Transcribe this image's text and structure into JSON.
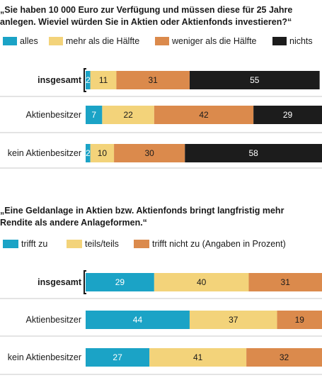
{
  "chart_data": [
    {
      "type": "bar",
      "stacked": true,
      "orientation": "horizontal",
      "title_lines": [
        "„Sie haben 10 000 Euro zur Verfügung und müssen diese für 25 Jahre",
        "anlegen. Wieviel würden Sie in Aktien oder Aktienfonds investieren?“"
      ],
      "categories": [
        "insgesamt",
        "Aktienbesitzer",
        "kein Aktienbesitzer"
      ],
      "highlight_category": "insgesamt",
      "xlim": [
        0,
        100
      ],
      "legend_placement": "top",
      "series": [
        {
          "name": "alles",
          "color": "#1ba3c6",
          "values": [
            2,
            7,
            2
          ]
        },
        {
          "name": "mehr als die Hälfte",
          "color": "#f3d37a",
          "values": [
            11,
            22,
            10
          ]
        },
        {
          "name": "weniger als die Hälfte",
          "color": "#db8a4c",
          "values": [
            31,
            42,
            30
          ]
        },
        {
          "name": "nichts",
          "color": "#1c1c1c",
          "values": [
            55,
            29,
            58
          ]
        }
      ]
    },
    {
      "type": "bar",
      "stacked": true,
      "orientation": "horizontal",
      "title_lines": [
        "„Eine Geldanlage in Aktien bzw. Aktienfonds bringt langfristig mehr",
        "Rendite als andere Anlageformen.“"
      ],
      "categories": [
        "insgesamt",
        "Aktienbesitzer",
        "kein Aktienbesitzer"
      ],
      "highlight_category": "insgesamt",
      "xlim": [
        0,
        100
      ],
      "legend_placement": "top",
      "series": [
        {
          "name": "trifft zu",
          "color": "#1ba3c6",
          "values": [
            29,
            44,
            27
          ]
        },
        {
          "name": "teils/teils",
          "color": "#f3d37a",
          "values": [
            40,
            37,
            41
          ]
        },
        {
          "name": "trifft nicht zu (Angaben in Prozent)",
          "color": "#db8a4c",
          "values": [
            31,
            19,
            32
          ]
        }
      ]
    }
  ]
}
